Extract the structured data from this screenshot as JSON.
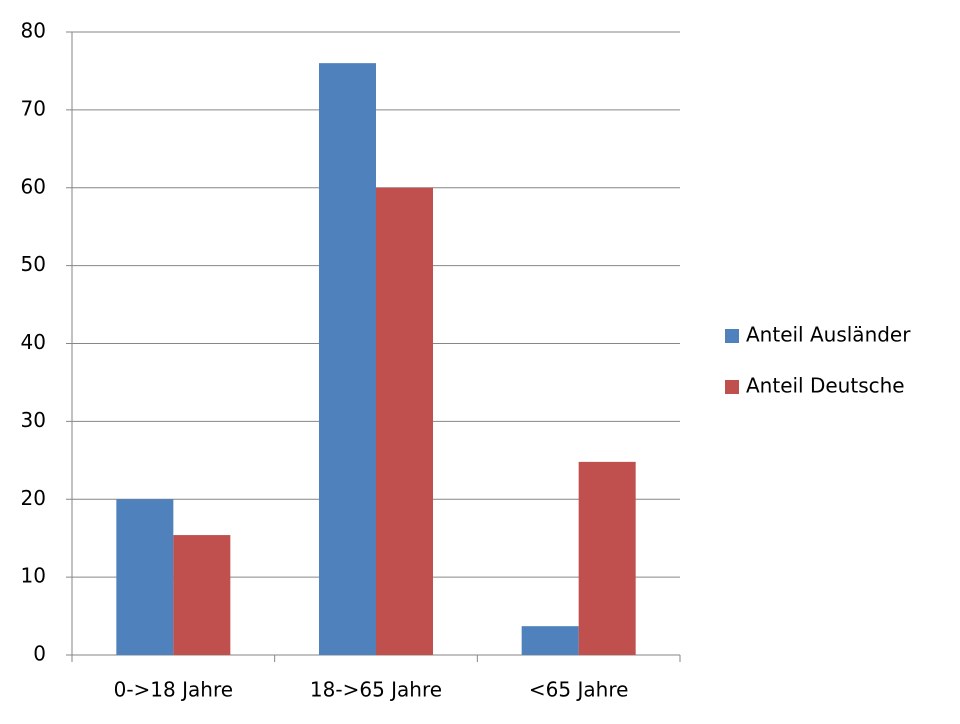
{
  "chart_data": {
    "type": "bar",
    "categories": [
      "0->18 Jahre",
      "18->65 Jahre",
      "<65 Jahre"
    ],
    "series": [
      {
        "name": "Anteil Ausländer",
        "color": "#4f81bd",
        "values": [
          20,
          76,
          3.7
        ]
      },
      {
        "name": "Anteil Deutsche",
        "color": "#c0504d",
        "values": [
          15.4,
          60,
          24.8
        ]
      }
    ],
    "ylim": [
      0,
      80
    ],
    "yticks": [
      0,
      10,
      20,
      30,
      40,
      50,
      60,
      70,
      80
    ],
    "grid": true,
    "legend": "right"
  }
}
